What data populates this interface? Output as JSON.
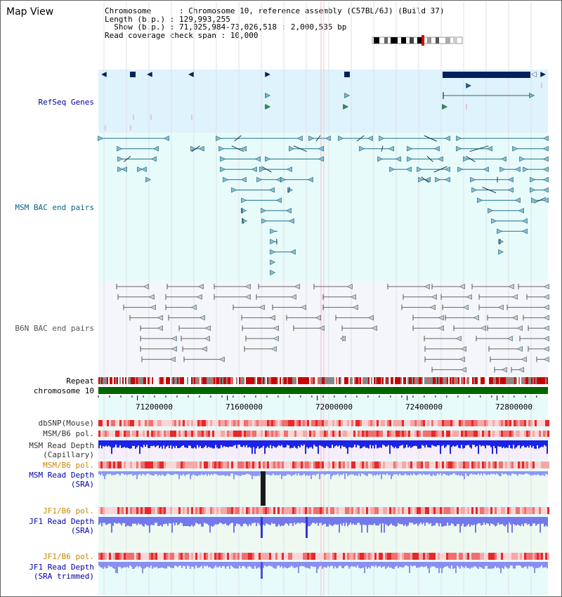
{
  "window": {
    "title": "Map View"
  },
  "info": {
    "chromosome_key": "Chromosome      :",
    "chromosome_val": "Chromosome 10, reference assembly (C57BL/6J) (Build 37)",
    "length_key": "Length (b.p.) :",
    "length_val": "129,993,255",
    "show_key": "  Show (b.p.) :",
    "show_val": "71,025,984-73,026,518 : 2,000,535 bp",
    "span_key": "Read coverage check span :",
    "span_val": "10,000"
  },
  "tracks": {
    "refseq": "RefSeq Genes",
    "msm_bac": "MSM BAC end pairs",
    "b6n_bac": "B6N BAC end pairs",
    "repeat": "Repeat",
    "chrom": "chromosome 10",
    "dbsnp": "dbSNP(Mouse)",
    "msm_b6_pol": "MSM/B6 pol.",
    "msm_depth_cap_1": "MSM Read Depth",
    "msm_depth_cap_2": "(Capillary)",
    "msm_b6_pol2": "MSM/B6 pol.",
    "msm_depth_sra_1": "MSM Read Depth",
    "msm_depth_sra_2": "(SRA)",
    "jf1_b6_pol": "JF1/B6 pol.",
    "jf1_depth_1": "JF1 Read Depth",
    "jf1_depth_2": "(SRA)",
    "jf1_b6_pol2": "JF1/B6 pol.",
    "jf1_trim_1": "JF1 Read Depth",
    "jf1_trim_2": "(SRA trimmed)"
  },
  "axis": {
    "ticks": [
      "71200000",
      "71600000",
      "72000000",
      "72400000",
      "72800000"
    ],
    "tick_values": [
      71200000,
      71600000,
      72000000,
      72400000,
      72800000
    ],
    "start": 71025984,
    "end": 73026518
  },
  "colors": {
    "refseq_bg": "#dff3fc",
    "bac_bg": "#e8fbfb",
    "b6n_bg": "#f4f6fb",
    "gene": "#002060",
    "msm_bac": "#1f6f8f",
    "b6n": "#666666",
    "chrom": "#006600",
    "depth_cap": "#1b23e6",
    "depth_sra": "#8f96f3",
    "pol_red": "#ee3333",
    "label_blue": "#0000aa",
    "label_orange": "#cc8800",
    "label_teal": "#006688"
  }
}
